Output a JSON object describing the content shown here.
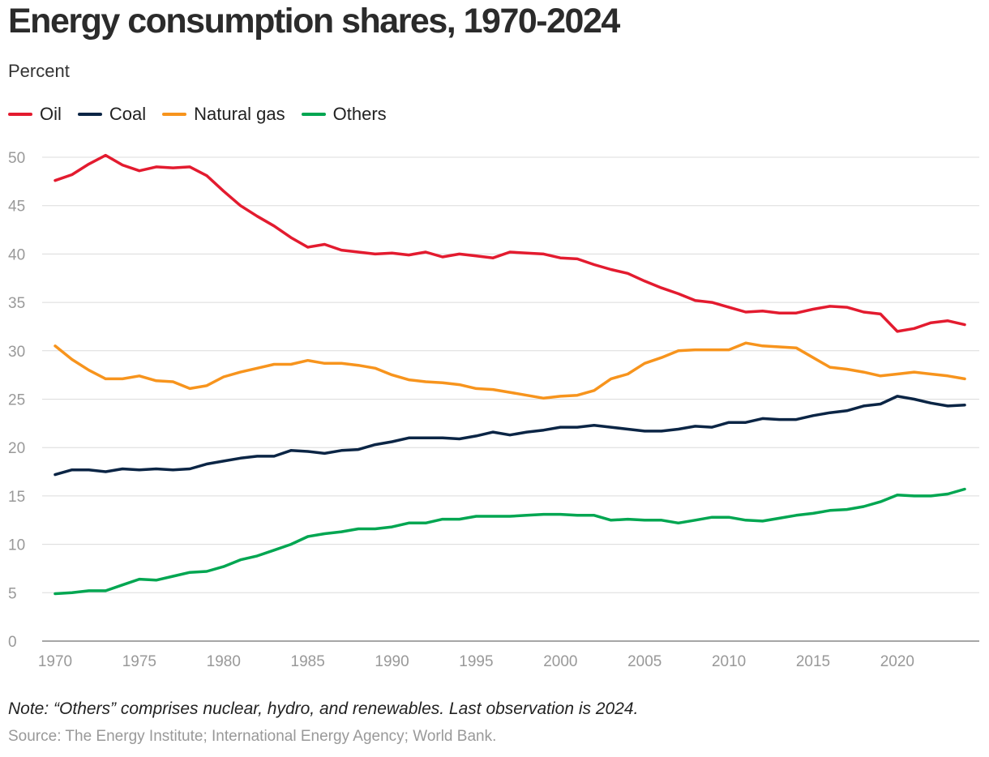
{
  "title": "Energy consumption shares, 1970-2024",
  "subtitle": "Percent",
  "legend": [
    {
      "label": "Oil",
      "color": "#e31b2f"
    },
    {
      "label": "Coal",
      "color": "#0b2545"
    },
    {
      "label": "Natural gas",
      "color": "#f7941d"
    },
    {
      "label": "Others",
      "color": "#00a651"
    }
  ],
  "note": "Note: “Others” comprises nuclear, hydro, and renewables. Last observation is 2024.",
  "source": "Source: The Energy Institute; International Energy Agency; World Bank.",
  "chart_data": {
    "type": "line",
    "title": "Energy consumption shares, 1970-2024",
    "ylabel": "Percent",
    "xlabel": "",
    "xlim": [
      1970,
      2024
    ],
    "ylim": [
      0,
      50
    ],
    "x_ticks": [
      1970,
      1975,
      1980,
      1985,
      1990,
      1995,
      2000,
      2005,
      2010,
      2015,
      2020
    ],
    "y_ticks": [
      0,
      5,
      10,
      15,
      20,
      25,
      30,
      35,
      40,
      45,
      50
    ],
    "grid": true,
    "legend_position": "top-left",
    "x": [
      1970,
      1971,
      1972,
      1973,
      1974,
      1975,
      1976,
      1977,
      1978,
      1979,
      1980,
      1981,
      1982,
      1983,
      1984,
      1985,
      1986,
      1987,
      1988,
      1989,
      1990,
      1991,
      1992,
      1993,
      1994,
      1995,
      1996,
      1997,
      1998,
      1999,
      2000,
      2001,
      2002,
      2003,
      2004,
      2005,
      2006,
      2007,
      2008,
      2009,
      2010,
      2011,
      2012,
      2013,
      2014,
      2015,
      2016,
      2017,
      2018,
      2019,
      2020,
      2021,
      2022,
      2023,
      2024
    ],
    "series": [
      {
        "name": "Oil",
        "color": "#e31b2f",
        "values": [
          47.6,
          48.2,
          49.3,
          50.2,
          49.2,
          48.6,
          49.0,
          48.9,
          49.0,
          48.1,
          46.5,
          45.0,
          43.9,
          42.9,
          41.7,
          40.7,
          41.0,
          40.4,
          40.2,
          40.0,
          40.1,
          39.9,
          40.2,
          39.7,
          40.0,
          39.8,
          39.6,
          40.2,
          40.1,
          40.0,
          39.6,
          39.5,
          38.9,
          38.4,
          38.0,
          37.2,
          36.5,
          35.9,
          35.2,
          35.0,
          34.5,
          34.0,
          34.1,
          33.9,
          33.9,
          34.3,
          34.6,
          34.5,
          34.0,
          33.8,
          32.0,
          32.3,
          32.9,
          33.1,
          32.7
        ]
      },
      {
        "name": "Coal",
        "color": "#0b2545",
        "values": [
          17.2,
          17.7,
          17.7,
          17.5,
          17.8,
          17.7,
          17.8,
          17.7,
          17.8,
          18.3,
          18.6,
          18.9,
          19.1,
          19.1,
          19.7,
          19.6,
          19.4,
          19.7,
          19.8,
          20.3,
          20.6,
          21.0,
          21.0,
          21.0,
          20.9,
          21.2,
          21.6,
          21.3,
          21.6,
          21.8,
          22.1,
          22.1,
          22.3,
          22.1,
          21.9,
          21.7,
          21.7,
          21.9,
          22.2,
          22.1,
          22.6,
          22.6,
          23.0,
          22.9,
          22.9,
          23.3,
          23.6,
          23.8,
          24.3,
          24.5,
          25.3,
          25.0,
          24.6,
          24.3,
          24.4
        ]
      },
      {
        "name": "Natural gas",
        "color": "#f7941d",
        "values": [
          30.5,
          29.1,
          28.0,
          27.1,
          27.1,
          27.4,
          26.9,
          26.8,
          26.1,
          26.4,
          27.3,
          27.8,
          28.2,
          28.6,
          28.6,
          29.0,
          28.7,
          28.7,
          28.5,
          28.2,
          27.5,
          27.0,
          26.8,
          26.7,
          26.5,
          26.1,
          26.0,
          25.7,
          25.4,
          25.1,
          25.3,
          25.4,
          25.9,
          27.1,
          27.6,
          28.7,
          29.3,
          30.0,
          30.1,
          30.1,
          30.1,
          30.8,
          30.5,
          30.4,
          30.3,
          29.3,
          28.3,
          28.1,
          27.8,
          27.4,
          27.6,
          27.8,
          27.6,
          27.4,
          27.1
        ]
      },
      {
        "name": "Others",
        "color": "#00a651",
        "values": [
          4.9,
          5.0,
          5.2,
          5.2,
          5.8,
          6.4,
          6.3,
          6.7,
          7.1,
          7.2,
          7.7,
          8.4,
          8.8,
          9.4,
          10.0,
          10.8,
          11.1,
          11.3,
          11.6,
          11.6,
          11.8,
          12.2,
          12.2,
          12.6,
          12.6,
          12.9,
          12.9,
          12.9,
          13.0,
          13.1,
          13.1,
          13.0,
          13.0,
          12.5,
          12.6,
          12.5,
          12.5,
          12.2,
          12.5,
          12.8,
          12.8,
          12.5,
          12.4,
          12.7,
          13.0,
          13.2,
          13.5,
          13.6,
          13.9,
          14.4,
          15.1,
          15.0,
          15.0,
          15.2,
          15.7
        ]
      }
    ]
  }
}
